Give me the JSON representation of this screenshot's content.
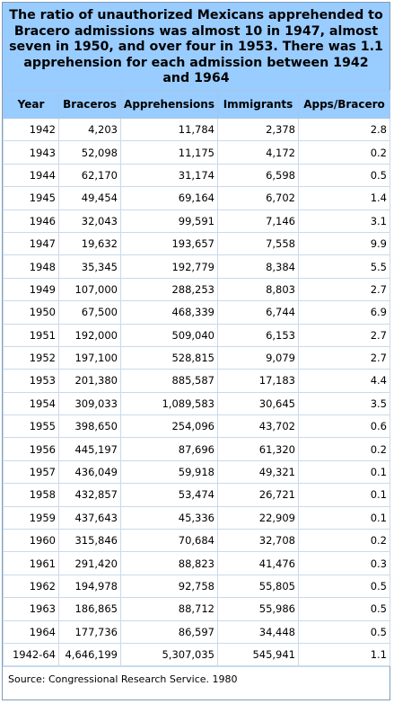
{
  "title": "The ratio of unauthorized Mexicans apprehended to Bracero admissions was almost 10 in 1947, almost seven in 1950, and over four in 1953. There was 1.1 apprehension for each admission between 1942 and 1964",
  "columns": [
    "Year",
    "Braceros",
    "Apprehensions",
    "Immigrants",
    "Apps/Bracero"
  ],
  "rows": [
    [
      "1942",
      "4,203",
      "11,784",
      "2,378",
      "2.8"
    ],
    [
      "1943",
      "52,098",
      "11,175",
      "4,172",
      "0.2"
    ],
    [
      "1944",
      "62,170",
      "31,174",
      "6,598",
      "0.5"
    ],
    [
      "1945",
      "49,454",
      "69,164",
      "6,702",
      "1.4"
    ],
    [
      "1946",
      "32,043",
      "99,591",
      "7,146",
      "3.1"
    ],
    [
      "1947",
      "19,632",
      "193,657",
      "7,558",
      "9.9"
    ],
    [
      "1948",
      "35,345",
      "192,779",
      "8,384",
      "5.5"
    ],
    [
      "1949",
      "107,000",
      "288,253",
      "8,803",
      "2.7"
    ],
    [
      "1950",
      "67,500",
      "468,339",
      "6,744",
      "6.9"
    ],
    [
      "1951",
      "192,000",
      "509,040",
      "6,153",
      "2.7"
    ],
    [
      "1952",
      "197,100",
      "528,815",
      "9,079",
      "2.7"
    ],
    [
      "1953",
      "201,380",
      "885,587",
      "17,183",
      "4.4"
    ],
    [
      "1954",
      "309,033",
      "1,089,583",
      "30,645",
      "3.5"
    ],
    [
      "1955",
      "398,650",
      "254,096",
      "43,702",
      "0.6"
    ],
    [
      "1956",
      "445,197",
      "87,696",
      "61,320",
      "0.2"
    ],
    [
      "1957",
      "436,049",
      "59,918",
      "49,321",
      "0.1"
    ],
    [
      "1958",
      "432,857",
      "53,474",
      "26,721",
      "0.1"
    ],
    [
      "1959",
      "437,643",
      "45,336",
      "22,909",
      "0.1"
    ],
    [
      "1960",
      "315,846",
      "70,684",
      "32,708",
      "0.2"
    ],
    [
      "1961",
      "291,420",
      "88,823",
      "41,476",
      "0.3"
    ],
    [
      "1962",
      "194,978",
      "92,758",
      "55,805",
      "0.5"
    ],
    [
      "1963",
      "186,865",
      "88,712",
      "55,986",
      "0.5"
    ],
    [
      "1964",
      "177,736",
      "86,597",
      "34,448",
      "0.5"
    ],
    [
      "1942-64",
      "4,646,199",
      "5,307,035",
      "545,941",
      "1.1"
    ]
  ],
  "source": "Source: Congressional Research Service. 1980",
  "colors": {
    "header_bg": "#99ccff",
    "border": "#c9d9ec"
  }
}
